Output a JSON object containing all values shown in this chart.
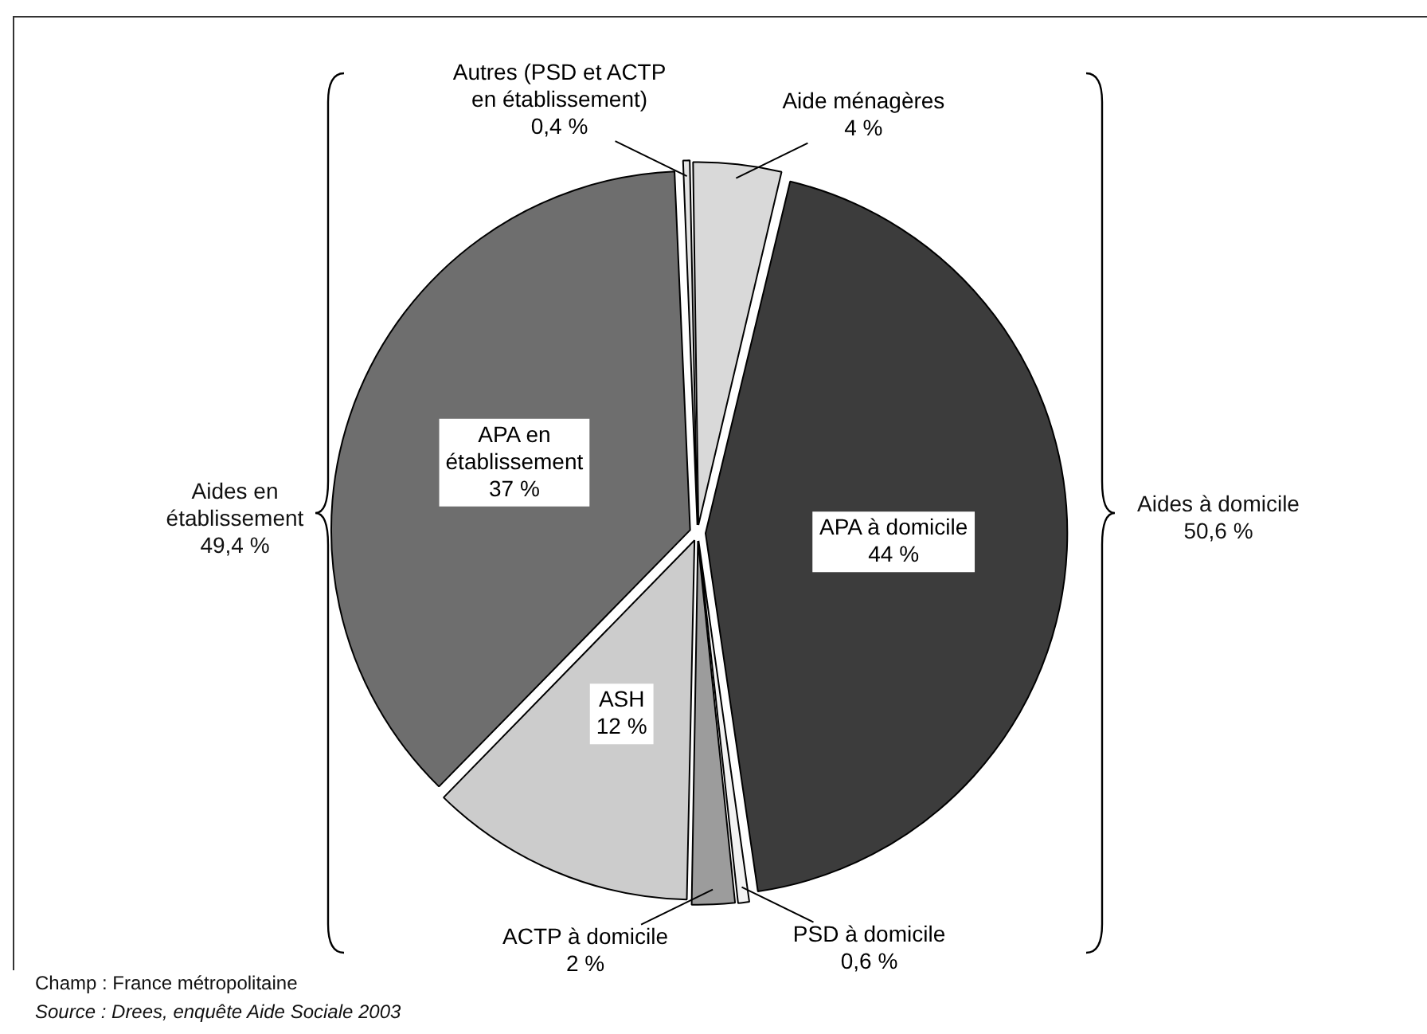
{
  "chart_data": {
    "type": "pie",
    "categories": [
      "Aide ménagères",
      "APA à domicile",
      "PSD à domicile",
      "ACTP à domicile",
      "ASH",
      "APA en établissement",
      "Autres (PSD et ACTP en établissement)"
    ],
    "values": [
      4,
      44,
      0.6,
      2,
      12,
      37,
      0.4
    ],
    "value_labels": [
      "4 %",
      "44 %",
      "0,6 %",
      "2 %",
      "12 %",
      "37 %",
      "0,4 %"
    ],
    "colors": [
      "#d9d9d9",
      "#3c3c3c",
      "#f2f2f2",
      "#9c9c9c",
      "#cccccc",
      "#6e6e6e",
      "#e4e4e4"
    ],
    "legend": false,
    "annotations": [
      "Aides en établissement 49,4 %",
      "Aides à domicile 50,6 %",
      "Champ : France métropolitaine",
      "Source : Drees, enquête Aide Sociale 2003"
    ]
  }
}
